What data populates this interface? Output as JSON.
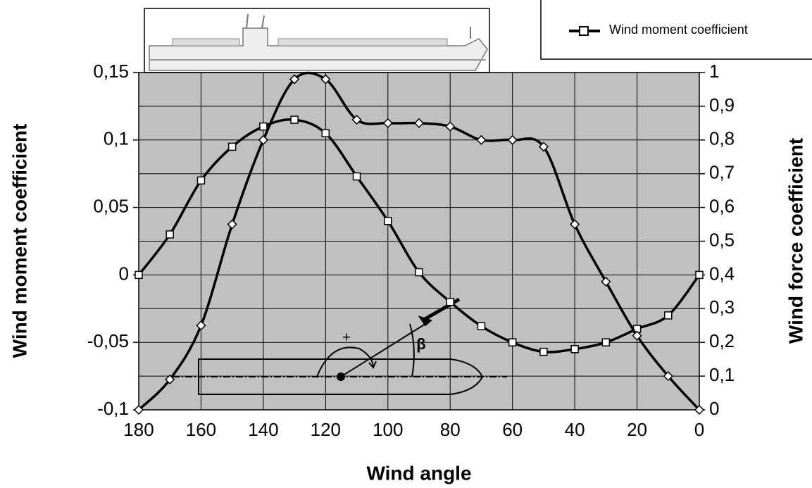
{
  "chart_data": {
    "type": "line",
    "x_label": "Wind angle",
    "y_label": "Wind moment  coefficient",
    "y2_label": "Wind force coefficient",
    "annotations": [
      "+",
      "β"
    ],
    "x": [
      180,
      170,
      160,
      150,
      140,
      130,
      120,
      110,
      100,
      90,
      80,
      70,
      60,
      50,
      40,
      30,
      20,
      10,
      0
    ],
    "series": [
      {
        "name": "Wind moment coefficient",
        "color": "#000000",
        "marker": "square",
        "values": [
          0,
          0.03,
          0.07,
          0.095,
          0.11,
          0.115,
          0.105,
          0.073,
          0.04,
          0.002,
          -0.02,
          -0.038,
          -0.05,
          -0.057,
          -0.055,
          -0.05,
          -0.04,
          -0.03,
          0
        ]
      },
      {
        "color": "#000000",
        "marker": "diamond",
        "axis": "y2",
        "values": [
          0,
          0.09,
          0.25,
          0.55,
          0.8,
          0.98,
          0.98,
          0.86,
          0.85,
          0.85,
          0.84,
          0.8,
          0.8,
          0.78,
          0.55,
          0.38,
          0.22,
          0.1,
          0
        ]
      }
    ],
    "xlim": [
      180,
      0
    ],
    "xticks": [
      180,
      160,
      140,
      120,
      100,
      80,
      60,
      40,
      20,
      0
    ],
    "ylim": [
      -0.1,
      0.15
    ],
    "yticks": [
      {
        "value": 0.15,
        "label": "0,15"
      },
      {
        "value": 0.1,
        "label": "0,1"
      },
      {
        "value": 0.05,
        "label": "0,05"
      },
      0,
      {
        "value": -0.05,
        "label": "-0,05"
      },
      {
        "value": -0.1,
        "label": "-0,1"
      }
    ],
    "y2lim": [
      0,
      1
    ],
    "y2ticks": [
      1,
      {
        "value": 0.9,
        "label": "0,9"
      },
      {
        "value": 0.8,
        "label": "0,8"
      },
      {
        "value": 0.7,
        "label": "0,7"
      },
      {
        "value": 0.6,
        "label": "0,6"
      },
      {
        "value": 0.5,
        "label": "0,5"
      },
      {
        "value": 0.4,
        "label": "0,4"
      },
      {
        "value": 0.3,
        "label": "0,3"
      },
      {
        "value": 0.2,
        "label": "0,2"
      },
      {
        "value": 0.1,
        "label": "0,1"
      },
      0
    ],
    "grid": true,
    "plot_background": "#c0c0c0",
    "legend": "top-right"
  }
}
